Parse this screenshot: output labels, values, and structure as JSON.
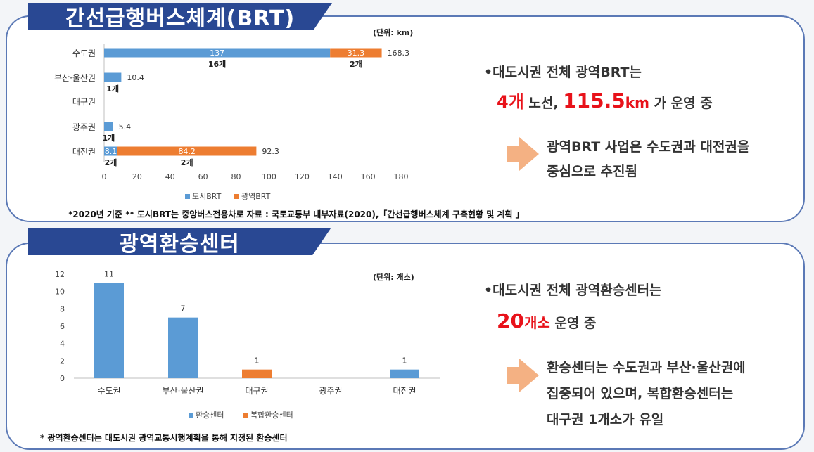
{
  "section1": {
    "title": "간선급행버스체계(BRT)",
    "unit": "(단위: km)",
    "footnote": "*2020년 기준  ** 도시BRT는 중앙버스전용차로        자료 : 국토교통부 내부자료(2020),「간선급행버스체계 구축현황 및 계획 」",
    "bullet1_prefix": "•대도시권 전체 광역BRT는",
    "bullet1_num1": "4개",
    "bullet1_mid": " 노선, ",
    "bullet1_num2": "115.5",
    "bullet1_unit2": "km",
    "bullet1_suffix": " 가 운영 중",
    "arrow_line1": "광역BRT 사업은 수도권과 대전권을",
    "arrow_line2": "중심으로 추진됨"
  },
  "section2": {
    "title": "광역환승센터",
    "unit": "(단위: 개소)",
    "footnote": "* 광역환승센터는 대도시권 광역교통시행계획을 통해 지정된 환승센터",
    "bullet1_prefix": "•대도시권 전체 광역환승센터는",
    "bullet1_num": "20",
    "bullet1_num_unit": "개소",
    "bullet1_suffix": " 운영 중",
    "arrow_line1": "환승센터는 수도권과 부산·울산권에",
    "arrow_line2": "집중되어 있으며, 복합환승센터는",
    "arrow_line3": "대구권 1개소가 유일"
  },
  "colors": {
    "blue": "#5b9bd5",
    "orange": "#ed7d31",
    "navy": "#294893"
  },
  "chart_data": [
    {
      "type": "bar",
      "orientation": "horizontal",
      "stacked": true,
      "categories": [
        "수도권",
        "부산·울산권",
        "대구권",
        "광주권",
        "대전권"
      ],
      "series": [
        {
          "name": "도시BRT",
          "values": [
            137,
            10.4,
            0,
            5.4,
            8.1
          ]
        },
        {
          "name": "광역BRT",
          "values": [
            31.3,
            0,
            0,
            0,
            84.2
          ]
        }
      ],
      "inner_labels": [
        [
          "137",
          "31.3"
        ],
        [
          "",
          ""
        ],
        [
          "",
          ""
        ],
        [
          "",
          ""
        ],
        [
          "8.1",
          "84.2"
        ]
      ],
      "total_labels": [
        "168.3",
        "10.4",
        "",
        "5.4",
        "92.3"
      ],
      "count_labels": [
        [
          "16개",
          "2개"
        ],
        [
          "1개",
          ""
        ],
        [
          "",
          ""
        ],
        [
          "1개",
          ""
        ],
        [
          "2개",
          "2개"
        ]
      ],
      "xlim": [
        0,
        180
      ],
      "xticks": [
        "0",
        "20",
        "40",
        "60",
        "80",
        "100",
        "120",
        "140",
        "160",
        "180"
      ],
      "legend": [
        "도시BRT",
        "광역BRT"
      ],
      "legend_position": "bottom"
    },
    {
      "type": "bar",
      "stacked": true,
      "categories": [
        "수도권",
        "부산·울산권",
        "대구권",
        "광주권",
        "대전권"
      ],
      "series": [
        {
          "name": "환승센터",
          "values": [
            11,
            7,
            0,
            0,
            1
          ]
        },
        {
          "name": "복합환승센터",
          "values": [
            0,
            0,
            1,
            0,
            0
          ]
        }
      ],
      "value_labels": [
        "11",
        "7",
        "1",
        "",
        "1"
      ],
      "ylim": [
        0,
        12
      ],
      "yticks": [
        "0",
        "2",
        "4",
        "6",
        "8",
        "10",
        "12"
      ],
      "legend": [
        "환승센터",
        "복합환승센터"
      ],
      "legend_position": "bottom"
    }
  ]
}
